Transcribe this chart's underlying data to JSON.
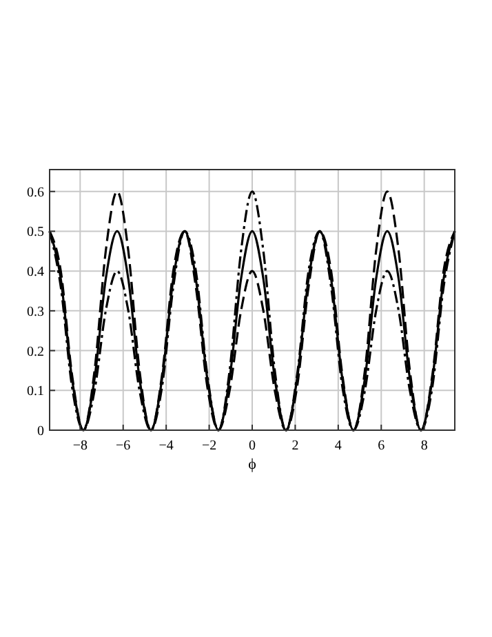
{
  "chart_data": {
    "type": "line",
    "xlabel": "ϕ",
    "x": [
      -9.42,
      -8.9,
      -8.38,
      -7.85,
      -7.33,
      -6.81,
      -6.28,
      -5.76,
      -5.24,
      -4.71,
      -4.19,
      -3.67,
      -3.14,
      -2.62,
      -2.09,
      -1.57,
      -1.05,
      -0.52,
      0,
      0.52,
      1.05,
      1.57,
      2.09,
      2.62,
      3.14,
      3.67,
      4.19,
      4.71,
      5.24,
      5.76,
      6.28,
      6.81,
      7.33,
      7.85,
      8.38,
      8.9,
      9.42
    ],
    "series": [
      {
        "color": "#000000",
        "line_style": "solid",
        "values": [
          0.5,
          0.38,
          0.13,
          0,
          0.13,
          0.38,
          0.5,
          0.38,
          0.13,
          0,
          0.13,
          0.38,
          0.5,
          0.38,
          0.13,
          0,
          0.13,
          0.38,
          0.5,
          0.38,
          0.13,
          0,
          0.13,
          0.38,
          0.5,
          0.38,
          0.13,
          0,
          0.13,
          0.38,
          0.5,
          0.38,
          0.13,
          0,
          0.13,
          0.38,
          0.5
        ]
      },
      {
        "color": "#000000",
        "line_style": "dashed",
        "values": [
          0.5,
          0.4,
          0.14,
          0,
          0.15,
          0.45,
          0.6,
          0.45,
          0.15,
          0,
          0.14,
          0.4,
          0.5,
          0.36,
          0.11,
          0,
          0.1,
          0.3,
          0.4,
          0.3,
          0.1,
          0,
          0.11,
          0.36,
          0.5,
          0.4,
          0.14,
          0,
          0.15,
          0.45,
          0.6,
          0.45,
          0.15,
          0,
          0.14,
          0.4,
          0.5
        ]
      },
      {
        "color": "#000000",
        "line_style": "dashdot",
        "values": [
          0.5,
          0.36,
          0.11,
          0,
          0.1,
          0.3,
          0.4,
          0.3,
          0.1,
          0,
          0.11,
          0.36,
          0.5,
          0.4,
          0.14,
          0,
          0.15,
          0.45,
          0.6,
          0.45,
          0.15,
          0,
          0.14,
          0.4,
          0.5,
          0.36,
          0.11,
          0,
          0.1,
          0.3,
          0.4,
          0.3,
          0.1,
          0,
          0.11,
          0.36,
          0.5
        ]
      }
    ],
    "xlim": [
      -9.42,
      9.42
    ],
    "xticks": [
      -8,
      -6,
      -4,
      -2,
      0,
      2,
      4,
      6,
      8
    ],
    "ylim": [
      0,
      0.655
    ],
    "yticks": [
      0,
      0.1,
      0.2,
      0.3,
      0.4,
      0.5,
      0.6
    ],
    "grid": true
  }
}
